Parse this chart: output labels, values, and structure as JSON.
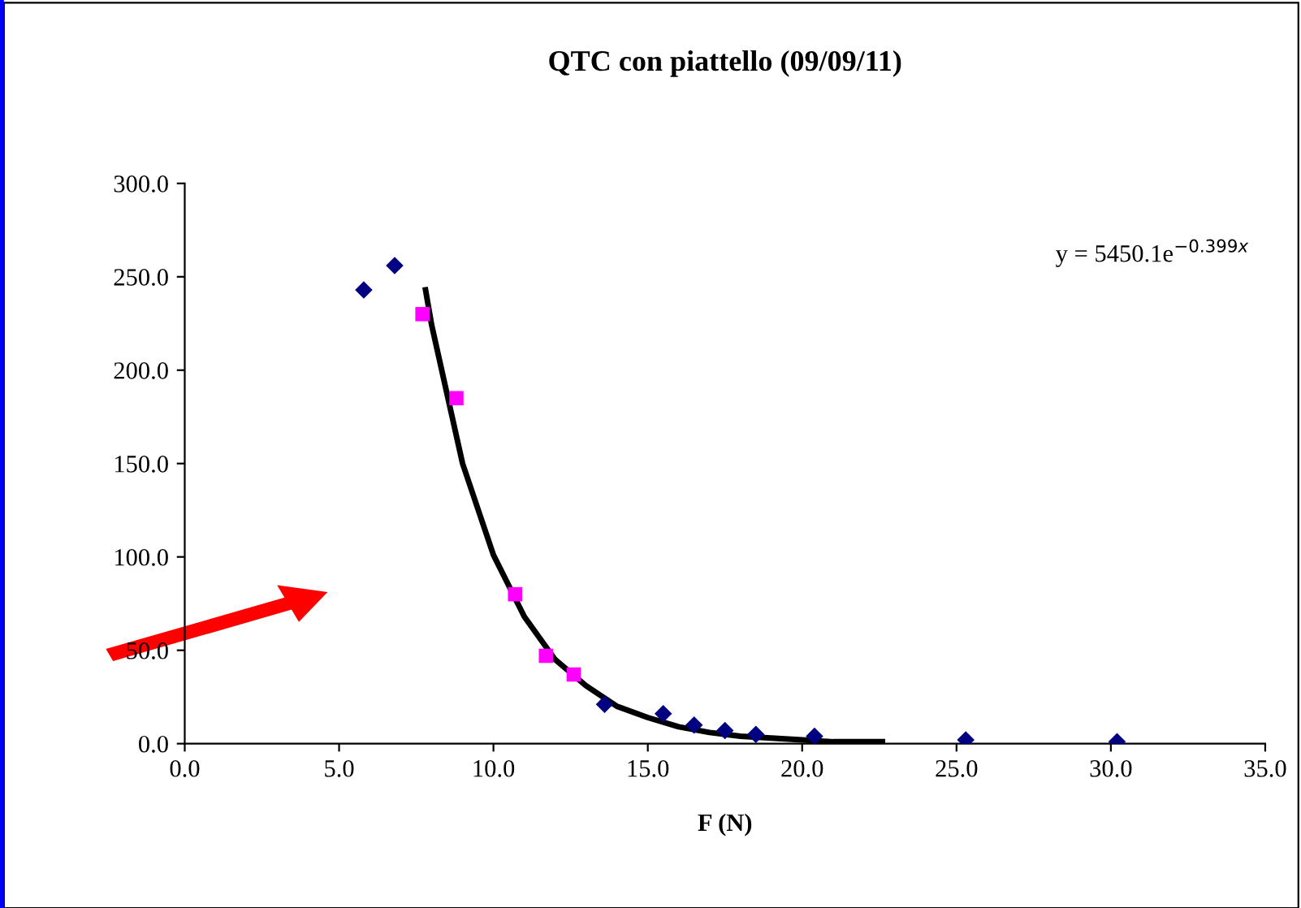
{
  "chart_data": {
    "type": "scatter",
    "title": "QTC con piattello (09/09/11)",
    "xlabel": "F (N)",
    "xlim": [
      0,
      35
    ],
    "xticks": [
      {
        "value": 0,
        "label": "0.0"
      },
      {
        "value": 5,
        "label": "5.0"
      },
      {
        "value": 10,
        "label": "10.0"
      },
      {
        "value": 15,
        "label": "15.0"
      },
      {
        "value": 20,
        "label": "20.0"
      },
      {
        "value": 25,
        "label": "25.0"
      },
      {
        "value": 30,
        "label": "30.0"
      },
      {
        "value": 35,
        "label": "35.0"
      }
    ],
    "ylim": [
      0,
      300
    ],
    "yticks": [
      {
        "value": 0,
        "label": "0.0"
      },
      {
        "value": 50,
        "label": "50.0"
      },
      {
        "value": 100,
        "label": "100.0"
      },
      {
        "value": 150,
        "label": "150.0"
      },
      {
        "value": 200,
        "label": "200.0"
      },
      {
        "value": 250,
        "label": "250.0"
      },
      {
        "value": 300,
        "label": "300.0"
      }
    ],
    "grid": false,
    "legend": false,
    "annotations": [
      "y = 5450.1e$^{−0.399x}$"
    ],
    "series": [
      {
        "marker": "diamond",
        "color": "#000080",
        "x": [
          5.8,
          6.8,
          13.6,
          15.5,
          16.5,
          17.5,
          18.5,
          20.4,
          25.3,
          30.2
        ],
        "values": [
          243,
          256,
          21,
          16,
          10,
          7,
          5,
          4,
          2,
          1
        ]
      },
      {
        "marker": "square",
        "color": "#ff00ff",
        "x": [
          7.7,
          8.8,
          10.7,
          11.7,
          12.6
        ],
        "values": [
          230,
          185,
          80,
          47,
          37
        ]
      },
      {
        "type": "line",
        "marker": "none",
        "line_style": "solid",
        "color": "#000000",
        "x": [
          7.8,
          8,
          9,
          10,
          11,
          12,
          13,
          14,
          15,
          16,
          17,
          18,
          19,
          20,
          21,
          22.6
        ],
        "values": [
          243,
          224,
          150,
          101,
          68,
          45,
          31,
          20,
          14,
          9,
          6,
          4,
          3,
          2,
          1,
          1
        ]
      }
    ]
  }
}
